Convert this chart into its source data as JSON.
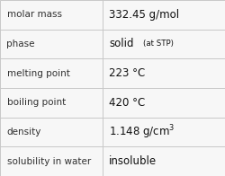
{
  "rows": [
    {
      "label": "molar mass",
      "value": "332.45 g/mol",
      "value_suffix": null,
      "superscript": null,
      "bold_value": false
    },
    {
      "label": "phase",
      "value": "solid",
      "value_suffix": " (at STP)",
      "superscript": null,
      "bold_value": false
    },
    {
      "label": "melting point",
      "value": "223 °C",
      "value_suffix": null,
      "superscript": null,
      "bold_value": false
    },
    {
      "label": "boiling point",
      "value": "420 °C",
      "value_suffix": null,
      "superscript": null,
      "bold_value": false
    },
    {
      "label": "density",
      "value": "1.148 g/cm",
      "value_suffix": null,
      "superscript": "3",
      "bold_value": false
    },
    {
      "label": "solubility in water",
      "value": "insoluble",
      "value_suffix": null,
      "superscript": null,
      "bold_value": false
    }
  ],
  "background_color": "#f7f7f7",
  "border_color": "#c8c8c8",
  "label_fontsize": 7.5,
  "value_fontsize": 8.5,
  "suffix_fontsize": 6.2,
  "label_color": "#303030",
  "value_color": "#101010",
  "col_split": 0.455,
  "fig_width": 2.5,
  "fig_height": 1.96,
  "dpi": 100
}
